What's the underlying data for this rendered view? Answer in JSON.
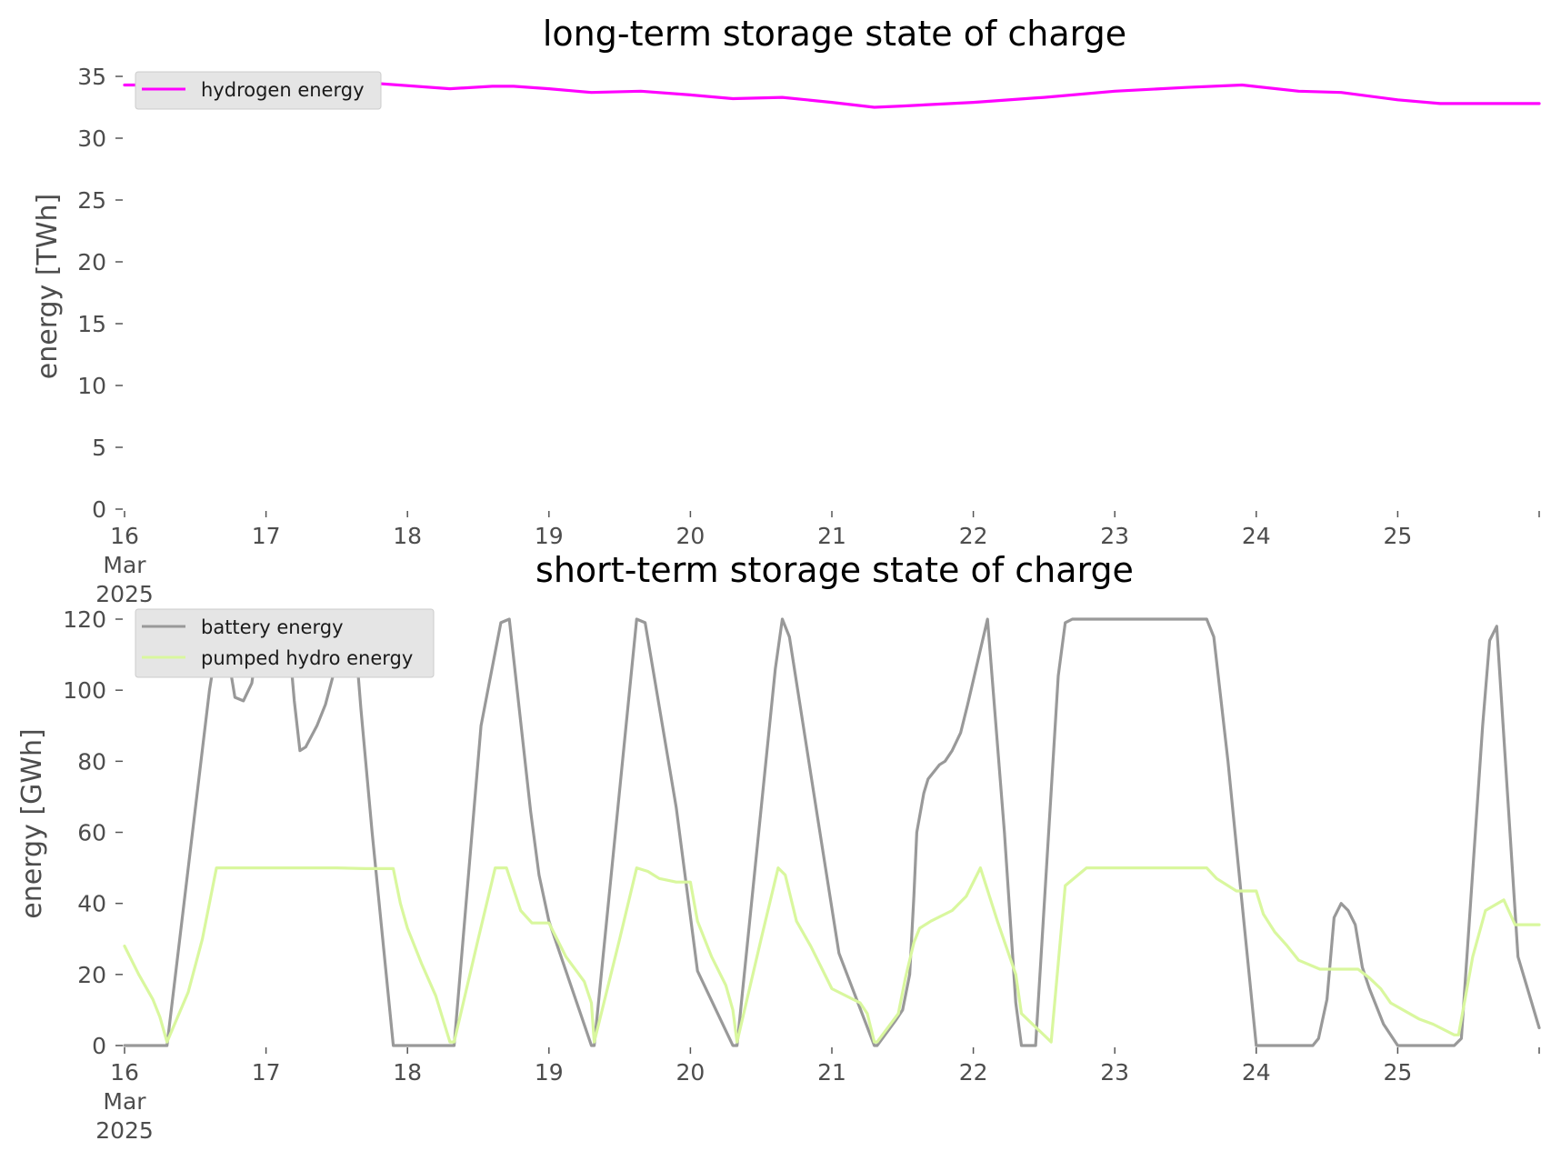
{
  "chart_data": [
    {
      "type": "line",
      "title": "long-term storage state of charge",
      "xlabel": "",
      "ylabel": "energy [TWh]",
      "xlim": [
        "2025-03-16",
        "2025-03-26"
      ],
      "ylim": [
        0,
        35
      ],
      "x_tick_labels": [
        [
          "16",
          "Mar",
          "2025"
        ],
        [
          "17"
        ],
        [
          "18"
        ],
        [
          "19"
        ],
        [
          "20"
        ],
        [
          "21"
        ],
        [
          "22"
        ],
        [
          "23"
        ],
        [
          "24"
        ],
        [
          "25"
        ]
      ],
      "y_ticks": [
        0,
        5,
        10,
        15,
        20,
        25,
        30,
        35
      ],
      "y_tick_labels": [
        "0",
        "5",
        "10",
        "15",
        "20",
        "25",
        "30",
        "35"
      ],
      "grid": false,
      "legend": "top-left",
      "series": [
        {
          "name": "hydrogen energy",
          "color": "#ff00ff",
          "x_days": [
            0,
            0.5,
            1.0,
            1.7,
            2.3,
            2.6,
            2.75,
            3.0,
            3.3,
            3.65,
            4.0,
            4.3,
            4.65,
            5.0,
            5.3,
            5.5,
            6.0,
            6.5,
            7.0,
            7.5,
            7.9,
            8.3,
            8.6,
            9.0,
            9.3,
            9.5,
            10.0
          ],
          "values": [
            34.3,
            34.3,
            34.3,
            34.5,
            34.0,
            34.2,
            34.2,
            34.0,
            33.7,
            33.8,
            33.5,
            33.2,
            33.3,
            32.9,
            32.5,
            32.6,
            32.9,
            33.3,
            33.8,
            34.1,
            34.3,
            33.8,
            33.7,
            33.1,
            32.8,
            32.8,
            32.8
          ]
        }
      ]
    },
    {
      "type": "line",
      "title": "short-term storage state of charge",
      "xlabel": "",
      "ylabel": "energy [GWh]",
      "xlim": [
        "2025-03-16",
        "2025-03-26"
      ],
      "ylim": [
        0,
        120
      ],
      "x_tick_labels": [
        [
          "16",
          "Mar",
          "2025"
        ],
        [
          "17"
        ],
        [
          "18"
        ],
        [
          "19"
        ],
        [
          "20"
        ],
        [
          "21"
        ],
        [
          "22"
        ],
        [
          "23"
        ],
        [
          "24"
        ],
        [
          "25"
        ]
      ],
      "y_ticks": [
        0,
        20,
        40,
        60,
        80,
        100,
        120
      ],
      "y_tick_labels": [
        "0",
        "20",
        "40",
        "60",
        "80",
        "100",
        "120"
      ],
      "grid": false,
      "legend": "top-left",
      "series": [
        {
          "name": "battery energy",
          "color": "#999999",
          "x_days": [
            0,
            0.25,
            0.3,
            0.6,
            0.68,
            0.73,
            0.78,
            0.84,
            0.9,
            0.93,
            1.1,
            1.15,
            1.2,
            1.24,
            1.28,
            1.32,
            1.36,
            1.42,
            1.48,
            1.55,
            1.62,
            1.67,
            1.75,
            1.9,
            1.95,
            2.3,
            2.33,
            2.52,
            2.66,
            2.72,
            2.87,
            2.93,
            3.0,
            3.3,
            3.32,
            3.62,
            3.68,
            3.9,
            4.05,
            4.3,
            4.33,
            4.6,
            4.65,
            4.7,
            4.9,
            5.05,
            5.3,
            5.32,
            5.45,
            5.5,
            5.55,
            5.58,
            5.6,
            5.65,
            5.68,
            5.72,
            5.76,
            5.8,
            5.85,
            5.91,
            5.96,
            6.1,
            6.22,
            6.3,
            6.34,
            6.44,
            6.6,
            6.65,
            6.7,
            6.8,
            7.0,
            7.5,
            7.65,
            7.7,
            7.8,
            7.9,
            7.95,
            8.0,
            8.2,
            8.4,
            8.44,
            8.5,
            8.55,
            8.6,
            8.65,
            8.7,
            8.75,
            8.8,
            8.9,
            9.0,
            9.1,
            9.4,
            9.45,
            9.6,
            9.65,
            9.7,
            9.85,
            10.0
          ],
          "values": [
            0,
            0,
            0,
            100,
            120,
            110,
            98,
            97,
            102,
            111,
            120,
            120,
            97,
            83,
            84,
            87,
            90,
            96,
            105,
            120,
            120,
            95,
            60,
            0,
            0,
            0,
            0,
            90,
            119,
            120,
            66,
            48,
            35,
            0,
            0,
            120,
            119,
            67,
            21,
            0,
            0,
            106,
            120,
            115,
            64,
            26,
            0,
            0,
            7,
            10,
            20,
            42,
            60,
            71,
            75,
            77,
            79,
            80,
            83,
            88,
            96,
            120,
            60,
            12,
            0,
            0,
            104,
            119,
            120,
            120,
            120,
            120,
            120,
            115,
            80,
            40,
            20,
            0,
            0,
            0,
            2,
            13,
            36,
            40,
            38,
            34,
            22,
            16,
            6,
            0,
            0,
            0,
            2,
            90,
            114,
            118,
            25,
            5
          ]
        },
        {
          "name": "pumped hydro energy",
          "color": "#d9f79e",
          "x_days": [
            0,
            0.1,
            0.2,
            0.25,
            0.3,
            0.45,
            0.55,
            0.65,
            1.0,
            1.5,
            1.7,
            1.9,
            1.95,
            2.0,
            2.1,
            2.2,
            2.3,
            2.33,
            2.5,
            2.62,
            2.7,
            2.8,
            2.88,
            3.0,
            3.12,
            3.25,
            3.3,
            3.32,
            3.5,
            3.62,
            3.7,
            3.78,
            3.9,
            4.0,
            4.05,
            4.15,
            4.25,
            4.3,
            4.33,
            4.5,
            4.62,
            4.67,
            4.75,
            4.85,
            5.0,
            5.2,
            5.25,
            5.3,
            5.32,
            5.47,
            5.52,
            5.58,
            5.62,
            5.7,
            5.85,
            5.95,
            6.05,
            6.17,
            6.3,
            6.34,
            6.55,
            6.65,
            6.8,
            7.0,
            7.5,
            7.65,
            7.72,
            7.86,
            8.0,
            8.05,
            8.13,
            8.22,
            8.3,
            8.45,
            8.55,
            8.72,
            8.8,
            8.88,
            8.95,
            9.15,
            9.25,
            9.4,
            9.43,
            9.53,
            9.62,
            9.75,
            9.83,
            9.9,
            10.0
          ],
          "values": [
            28,
            20,
            13,
            8,
            1,
            15,
            30,
            50,
            50,
            50,
            49.8,
            49.8,
            40,
            33,
            23,
            14,
            1,
            1,
            30,
            50,
            50,
            38,
            34.5,
            34.5,
            25,
            18,
            12,
            1,
            30,
            50,
            49,
            47,
            46,
            46,
            35,
            25,
            17,
            10,
            1,
            30,
            50,
            48,
            35,
            28,
            16,
            12,
            9,
            1,
            1,
            9,
            19,
            29,
            33,
            35,
            38,
            42,
            50,
            35,
            20,
            9,
            1,
            45,
            50,
            50,
            50,
            50,
            47,
            43.5,
            43.5,
            37,
            32,
            28,
            24,
            21.5,
            21.5,
            21.5,
            19,
            16,
            12,
            7.5,
            6,
            3,
            3,
            25,
            38,
            41,
            34,
            34,
            34
          ]
        }
      ]
    }
  ]
}
